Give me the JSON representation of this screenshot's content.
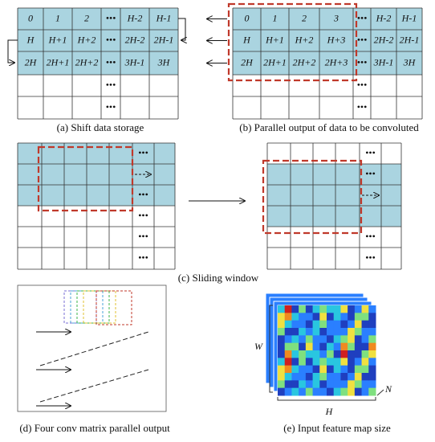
{
  "panels": {
    "a": {
      "caption": "(a) Shift data storage",
      "ellipsis": "•••",
      "rows": [
        [
          "0",
          "1",
          "2",
          "•••",
          "H-2",
          "H-1"
        ],
        [
          "H",
          "H+1",
          "H+2",
          "•••",
          "2H-2",
          "2H-1"
        ],
        [
          "2H",
          "2H+1",
          "2H+2",
          "•••",
          "3H-1",
          "3H"
        ]
      ]
    },
    "b": {
      "caption": "(b) Parallel output of data to be convoluted",
      "ellipsis": "•••",
      "rows": [
        [
          "0",
          "1",
          "2",
          "3",
          "•••",
          "H-2",
          "H-1"
        ],
        [
          "H",
          "H+1",
          "H+2",
          "H+3",
          "•••",
          "2H-2",
          "2H-1"
        ],
        [
          "2H",
          "2H+1",
          "2H+2",
          "2H+3",
          "•••",
          "3H-1",
          "3H"
        ]
      ]
    },
    "c": {
      "caption": "(c) Sliding window",
      "ellipsis": "•••"
    },
    "d": {
      "caption": "(d) Four conv matrix parallel output"
    },
    "e": {
      "caption": "(e) Input feature map size",
      "width_label": "W",
      "height_label": "H",
      "depth_label": "N"
    }
  }
}
